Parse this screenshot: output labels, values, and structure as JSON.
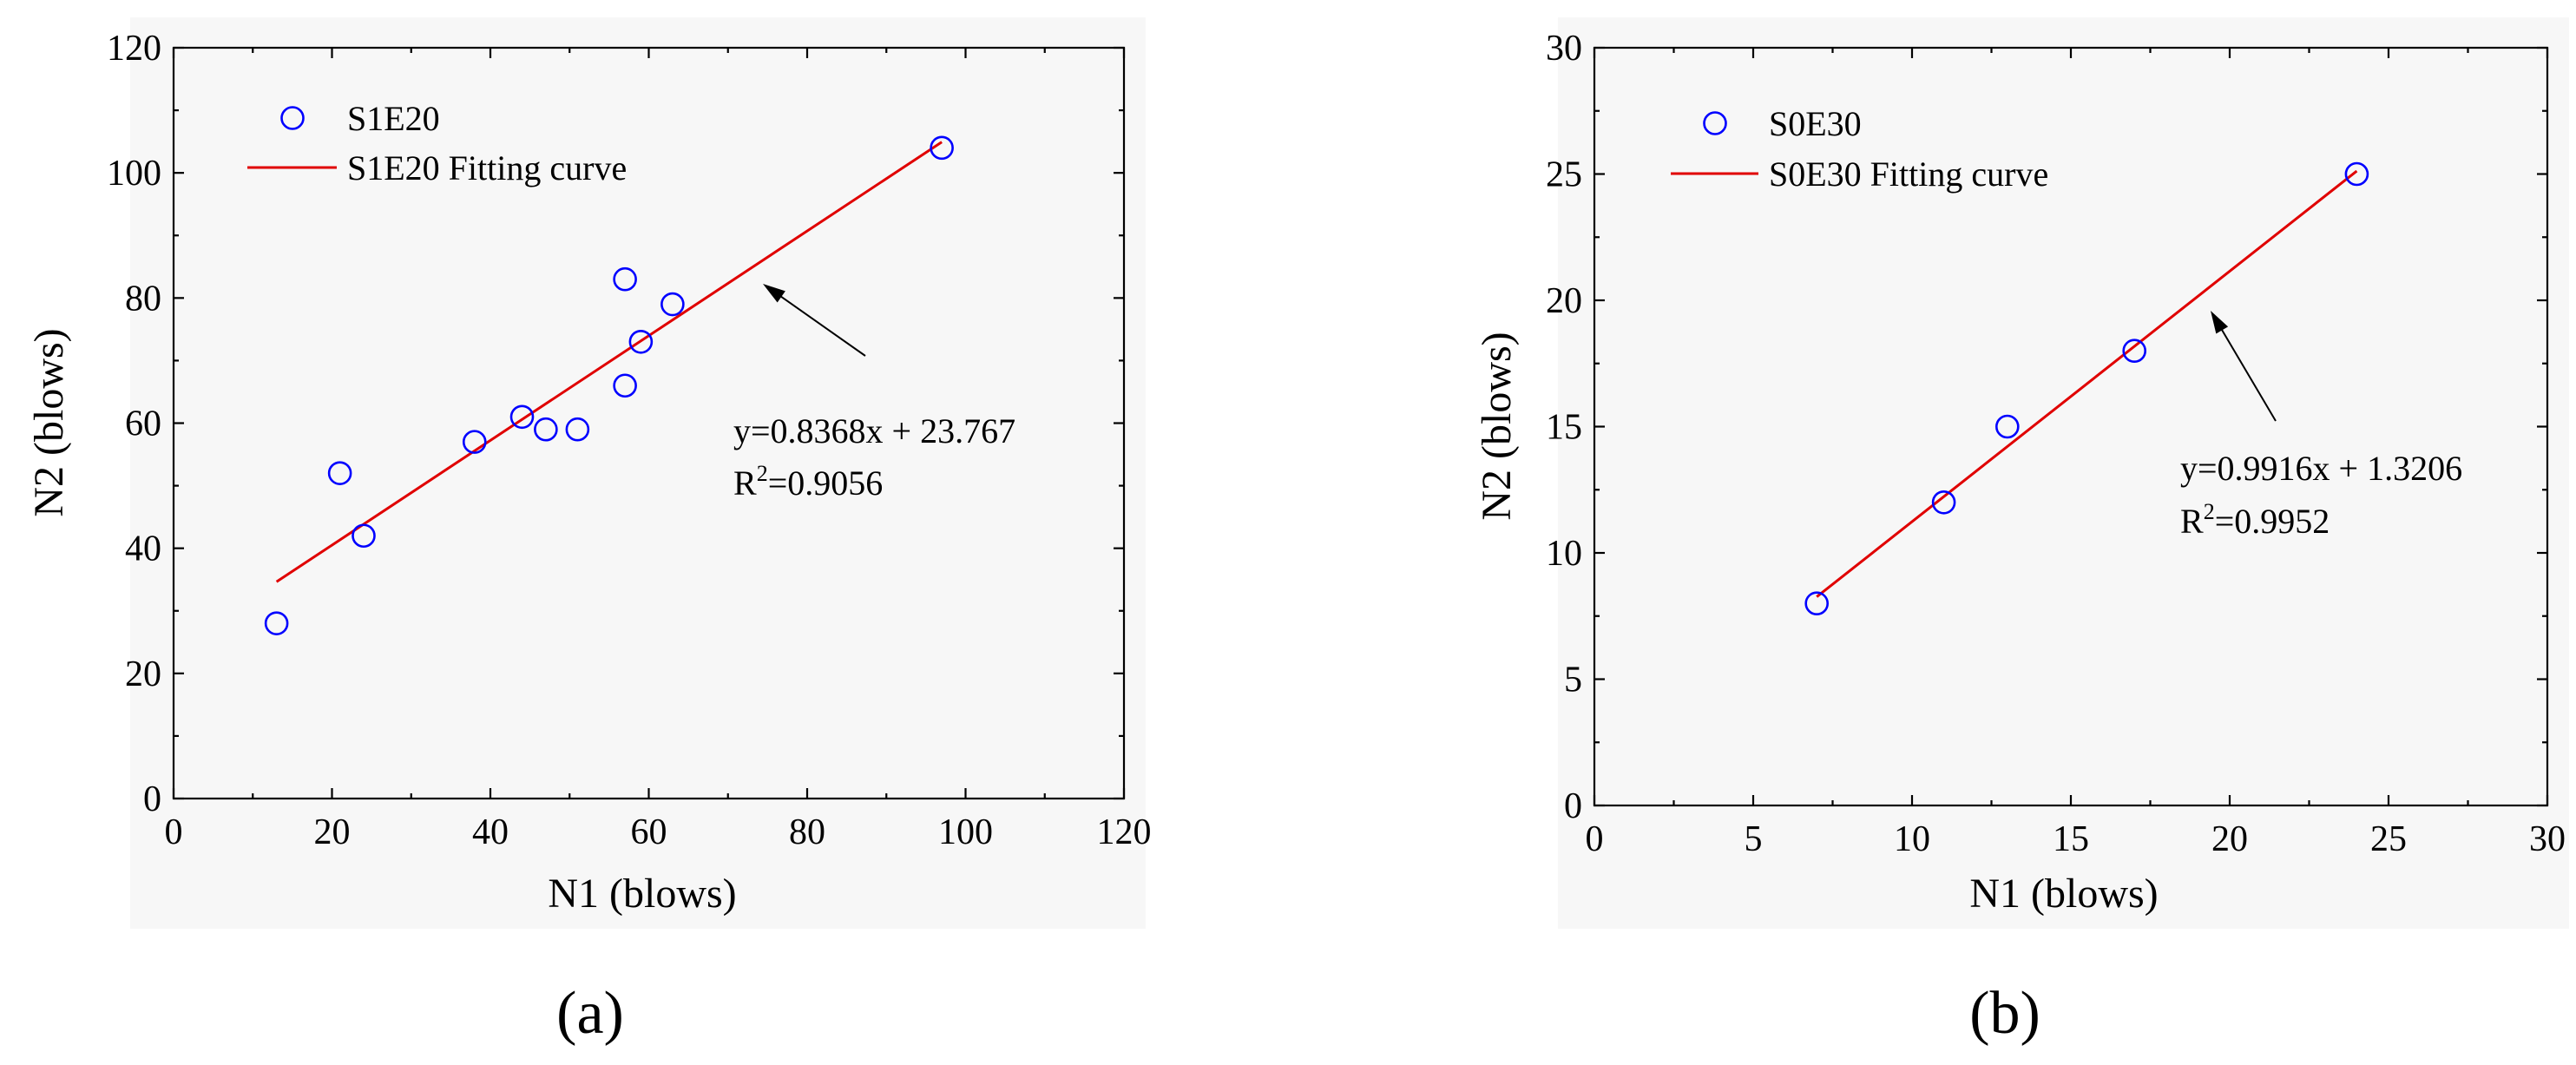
{
  "chart_data": [
    {
      "type": "scatter",
      "panel_label": "(a)",
      "xlabel": "N1 (blows)",
      "ylabel": "N2 (blows)",
      "xlim": [
        0,
        120
      ],
      "ylim": [
        0,
        120
      ],
      "xticks": [
        0,
        20,
        40,
        60,
        80,
        100,
        120
      ],
      "yticks": [
        0,
        20,
        40,
        60,
        80,
        100,
        120
      ],
      "series": [
        {
          "name": "S1E20",
          "color": "#0000ff",
          "x": [
            13,
            21,
            24,
            38,
            44,
            47,
            51,
            57,
            57,
            59,
            63,
            97
          ],
          "y": [
            28,
            52,
            42,
            57,
            61,
            59,
            59,
            83,
            66,
            73,
            79,
            104
          ]
        }
      ],
      "fit": {
        "name": "S1E20 Fitting curve",
        "color": "#e00000",
        "slope": 0.8368,
        "intercept": 23.767,
        "x_range": [
          13,
          97
        ]
      },
      "annotation": {
        "equation": "y=0.8368x + 23.767",
        "r2_label": "R",
        "r2_sup": "2",
        "r2_value": "=0.9056"
      }
    },
    {
      "type": "scatter",
      "panel_label": "(b)",
      "xlabel": "N1 (blows)",
      "ylabel": "N2 (blows)",
      "xlim": [
        0,
        30
      ],
      "ylim": [
        0,
        30
      ],
      "xticks": [
        0,
        5,
        10,
        15,
        20,
        25,
        30
      ],
      "yticks": [
        0,
        5,
        10,
        15,
        20,
        25,
        30
      ],
      "series": [
        {
          "name": "S0E30",
          "color": "#0000ff",
          "x": [
            7,
            11,
            13,
            17,
            24
          ],
          "y": [
            8,
            12,
            15,
            18,
            25
          ]
        }
      ],
      "fit": {
        "name": "S0E30 Fitting curve",
        "color": "#e00000",
        "slope": 0.9916,
        "intercept": 1.3206,
        "x_range": [
          7,
          24
        ]
      },
      "annotation": {
        "equation": "y=0.9916x + 1.3206",
        "r2_label": "R",
        "r2_sup": "2",
        "r2_value": "=0.9952"
      }
    }
  ]
}
